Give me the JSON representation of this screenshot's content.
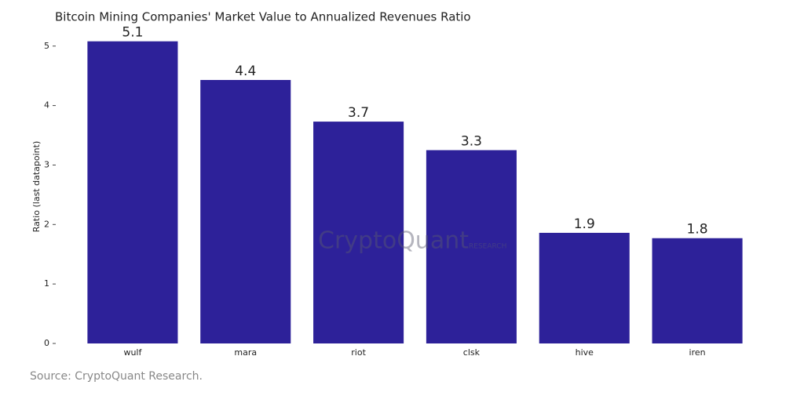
{
  "chart_data": {
    "type": "bar",
    "title": "Bitcoin Mining Companies' Market Value to Annualized Revenues Ratio",
    "y_label": "Ratio (last datapoint)",
    "categories": [
      "wulf",
      "mara",
      "riot",
      "clsk",
      "hive",
      "iren"
    ],
    "values": [
      5.08,
      4.43,
      3.73,
      3.25,
      1.86,
      1.77
    ],
    "value_labels": [
      "5.1",
      "4.4",
      "3.7",
      "3.3",
      "1.9",
      "1.8"
    ],
    "color": "#2d2199",
    "ylim": [
      0,
      5.3
    ],
    "yticks": [
      0,
      1,
      2,
      3,
      4,
      5
    ],
    "grid": false,
    "watermark": "CryptoQuant",
    "watermark_sub": "RESEARCH",
    "source": "Source: CryptoQuant Research."
  }
}
